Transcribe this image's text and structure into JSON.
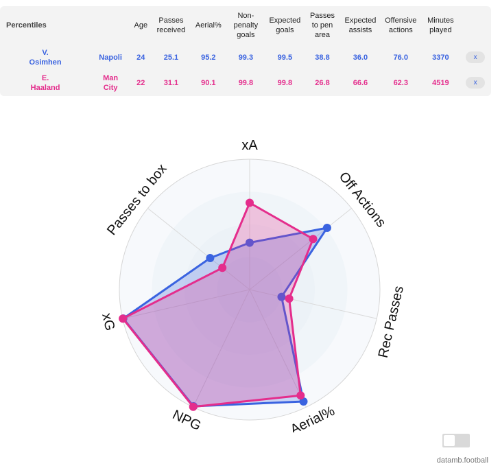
{
  "table": {
    "title": "Percentiles",
    "columns": [
      "Age",
      "Passes\nreceived",
      "Aerial%",
      "Non-\npenalty\ngoals",
      "Expected\ngoals",
      "Passes\nto pen\narea",
      "Expected\nassists",
      "Offensive\nactions",
      "Minutes\nplayed"
    ],
    "rows": [
      {
        "player": "V.\nOsimhen",
        "team": "Napoli",
        "values": [
          "24",
          "25.1",
          "95.2",
          "99.3",
          "99.5",
          "38.8",
          "36.0",
          "76.0",
          "3370"
        ],
        "remove_label": "x"
      },
      {
        "player": "E.\nHaaland",
        "team": "Man\nCity",
        "values": [
          "22",
          "31.1",
          "90.1",
          "99.8",
          "99.8",
          "26.8",
          "66.6",
          "62.3",
          "4519"
        ],
        "remove_label": "x"
      }
    ]
  },
  "chart_data": {
    "type": "radar",
    "axes": [
      "xA",
      "Off Actions",
      "Rec Passes",
      "Aerial%",
      "NPG",
      "xG",
      "Passes to box"
    ],
    "range": [
      0,
      100
    ],
    "series": [
      {
        "name": "V. Osimhen",
        "color": "#3a63e0",
        "values": [
          36.0,
          76.0,
          25.1,
          95.2,
          99.3,
          99.5,
          38.8
        ]
      },
      {
        "name": "E. Haaland",
        "color": "#e42d8c",
        "values": [
          66.6,
          62.3,
          31.1,
          90.1,
          99.8,
          99.8,
          26.8
        ]
      }
    ]
  },
  "footer": {
    "credit": "datamb.football"
  }
}
